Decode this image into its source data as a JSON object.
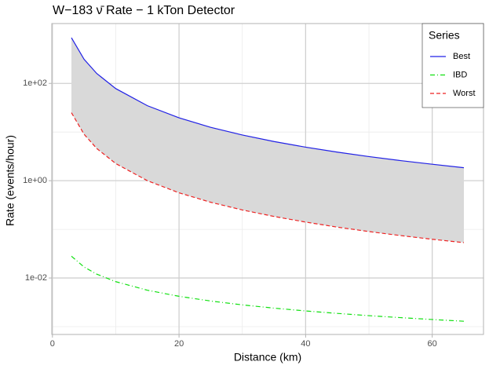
{
  "chart_data": {
    "type": "line",
    "title": "W−183 ν̄ Rate − 1 kTon Detector",
    "x_label": "Distance (km)",
    "y_label": "Rate (events/hour)",
    "x": [
      3,
      5,
      7,
      10,
      15,
      20,
      25,
      30,
      35,
      40,
      45,
      50,
      55,
      60,
      65
    ],
    "series": [
      {
        "name": "Best",
        "color": "#2020e6",
        "dash": "solid",
        "values": [
          870,
          313,
          160,
          78.3,
          34.8,
          19.6,
          12.5,
          8.7,
          6.39,
          4.89,
          3.87,
          3.13,
          2.59,
          2.18,
          1.85
        ]
      },
      {
        "name": "IBD",
        "color": "#10e010",
        "dash": "dashdot",
        "values": [
          0.028,
          0.0168,
          0.012,
          0.0084,
          0.0056,
          0.0042,
          0.00336,
          0.0028,
          0.0024,
          0.0021,
          0.00187,
          0.00168,
          0.00153,
          0.0014,
          0.00129
        ]
      },
      {
        "name": "Worst",
        "color": "#ee2222",
        "dash": "dashed",
        "values": [
          25,
          9,
          4.59,
          2.25,
          1.0,
          0.563,
          0.36,
          0.25,
          0.184,
          0.141,
          0.111,
          0.09,
          0.0744,
          0.0625,
          0.0533
        ]
      }
    ],
    "ribbon": {
      "between": [
        0,
        2
      ],
      "color": "#d9d9d9"
    },
    "xlim": [
      -0.1,
      68.1
    ],
    "xticks": [
      0,
      20,
      40,
      60
    ],
    "xminor": [
      10,
      30,
      50
    ],
    "ylim": [
      0.00069,
      1700
    ],
    "ylog": true,
    "yticks": [
      {
        "value": 100,
        "label": "1e+02"
      },
      {
        "value": 1,
        "label": "1e+00"
      },
      {
        "value": 0.01,
        "label": "1e-02"
      }
    ],
    "yminor": [
      10,
      0.1,
      0.001
    ],
    "grid": true,
    "legend_title": "Series",
    "legend_position": "top-right"
  }
}
